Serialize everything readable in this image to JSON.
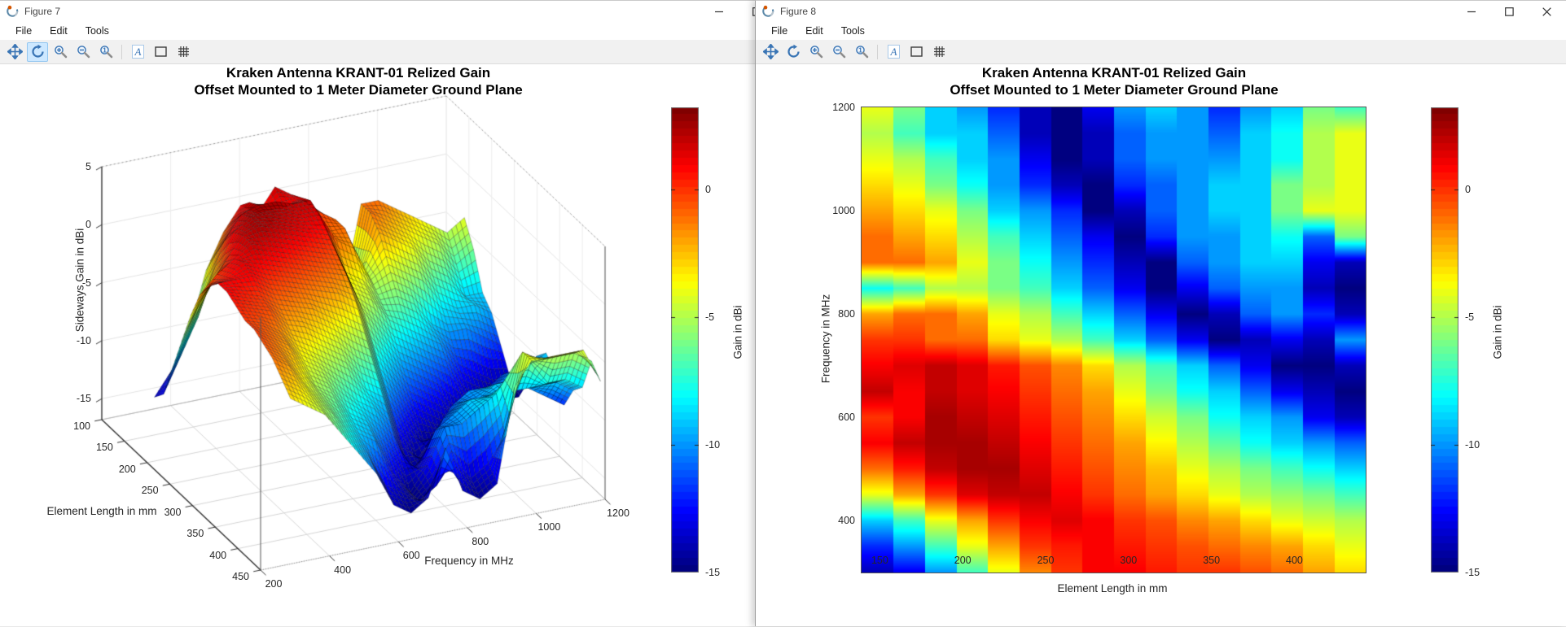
{
  "chrome": {
    "toolbar_active_bg": "#cde8ff",
    "toolbar_active_border": "#92c6f0",
    "icon_blue": "#3a75b5",
    "logo_orange": "#d45500",
    "logo_blue": "#5b88a8"
  },
  "windows": [
    {
      "title": "Figure 7",
      "menus": [
        "File",
        "Edit",
        "Tools"
      ],
      "toolbar": [
        "pan",
        "rotate-3d",
        "zoom-in",
        "zoom-out",
        "zoom-reset",
        "separator",
        "text",
        "rectangle",
        "grid"
      ],
      "active_tool": "rotate-3d",
      "window_buttons": [
        "minimize",
        "maximize"
      ],
      "plot": {
        "title1": "Kraken Antenna KRANT-01 Relized Gain",
        "title2": "Offset Mounted to 1 Meter Diameter Ground Plane",
        "xlabel": "Frequency in MHz",
        "x_ticks": [
          200,
          400,
          600,
          800,
          1000,
          1200
        ],
        "ylabel": "Element Length in mm",
        "y_ticks": [
          100,
          150,
          200,
          250,
          300,
          350,
          400,
          450
        ],
        "zlabel": "Sideways Gain in dBi",
        "z_ticks": [
          5,
          0,
          -5,
          -10,
          -15
        ],
        "colorbar_label": "Gain in dBi",
        "colorbar_ticks": [
          0,
          -5,
          -10,
          -15
        ]
      }
    },
    {
      "title": "Figure 8",
      "menus": [
        "File",
        "Edit",
        "Tools"
      ],
      "toolbar": [
        "pan",
        "rotate-3d",
        "zoom-in",
        "zoom-out",
        "zoom-reset",
        "separator",
        "text",
        "rectangle",
        "grid"
      ],
      "active_tool": null,
      "window_buttons": [
        "minimize",
        "maximize",
        "close"
      ],
      "plot": {
        "title1": "Kraken Antenna KRANT-01 Relized Gain",
        "title2": "Offset Mounted to 1 Meter Diameter Ground Plane",
        "xlabel": "Element Length in mm",
        "x_ticks": [
          150,
          200,
          250,
          300,
          350,
          400
        ],
        "ylabel": "Frequency in MHz",
        "y_ticks": [
          1200,
          1000,
          800,
          600,
          400
        ],
        "colorbar_label": "Gain in dBi",
        "colorbar_ticks": [
          0,
          -5,
          -10,
          -15
        ]
      }
    }
  ],
  "chart_data": [
    {
      "type": "surface3d",
      "title": "Kraken Antenna KRANT-01 Relized Gain — Offset Mounted to 1 Meter Diameter Ground Plane",
      "xlabel": "Frequency in MHz",
      "ylabel": "Element Length in mm",
      "zlabel": "Sideways Gain in dBi",
      "x_range_mhz": [
        200,
        1200
      ],
      "y_range_mm": [
        100,
        450
      ],
      "z_ticks": [
        5,
        0,
        -5,
        -10,
        -15
      ],
      "colormap": "jet",
      "color_range": [
        -15,
        3.2
      ],
      "lengths_mm": [
        140,
        160,
        180,
        200,
        220,
        240,
        260,
        280,
        300,
        320,
        340,
        360,
        380,
        400,
        420,
        440
      ],
      "freqs_mhz": [
        1200,
        1150,
        1100,
        1050,
        1000,
        950,
        900,
        850,
        800,
        750,
        700,
        650,
        600,
        550,
        500,
        450,
        400,
        350,
        300
      ],
      "gain_dbi": [
        [
          -4,
          -6,
          -9,
          -10,
          -12,
          -14,
          -15,
          -13,
          -10,
          -9,
          -10,
          -12,
          -10,
          -9,
          -6,
          -7
        ],
        [
          -5,
          -7,
          -9,
          -9,
          -11,
          -14,
          -15,
          -14,
          -11,
          -10,
          -10,
          -11,
          -9,
          -8,
          -5,
          -4
        ],
        [
          -4,
          -5,
          -7,
          -9,
          -10,
          -13,
          -15,
          -14,
          -11,
          -10,
          -10,
          -10,
          -9,
          -8,
          -5,
          -4
        ],
        [
          -3,
          -4,
          -6,
          -8,
          -10,
          -12,
          -14,
          -15,
          -12,
          -11,
          -10,
          -9,
          -9,
          -6,
          -5,
          -4
        ],
        [
          -2,
          -3,
          -4,
          -6,
          -9,
          -10,
          -12,
          -15,
          -14,
          -11,
          -10,
          -9,
          -9,
          -6,
          -4,
          -4
        ],
        [
          -1,
          -2,
          -3,
          -5,
          -7,
          -9,
          -11,
          -13,
          -15,
          -12,
          -10,
          -10,
          -9,
          -8,
          -11,
          -6
        ],
        [
          -1,
          -1,
          -2,
          -4,
          -6,
          -8,
          -10,
          -12,
          -14,
          -15,
          -11,
          -10,
          -9,
          -9,
          -13,
          -14
        ],
        [
          -8,
          -7,
          -5,
          -5,
          -6,
          -7,
          -9,
          -11,
          -13,
          -15,
          -13,
          -11,
          -10,
          -10,
          -14,
          -15
        ],
        [
          -2,
          -1,
          -1,
          -2,
          -4,
          -5,
          -7,
          -9,
          -11,
          -13,
          -15,
          -14,
          -11,
          -10,
          -12,
          -14
        ],
        [
          0,
          0,
          -1,
          -1,
          -3,
          -4,
          -5,
          -7,
          -9,
          -11,
          -13,
          -15,
          -14,
          -13,
          -14,
          -10
        ],
        [
          1,
          1.5,
          2,
          1.5,
          0.5,
          -0.5,
          -1.5,
          -3,
          -5,
          -7,
          -9,
          -11,
          -13,
          -15,
          -15,
          -14
        ],
        [
          2,
          1,
          2,
          1.5,
          1,
          0,
          -1,
          -2,
          -4,
          -6,
          -8,
          -9,
          -11,
          -13,
          -14,
          -15
        ],
        [
          0,
          1,
          2.5,
          2,
          1.5,
          0.5,
          -0.5,
          -1.5,
          -3,
          -4.5,
          -6,
          -8,
          -9,
          -10,
          -13,
          -14
        ],
        [
          1,
          2,
          2.5,
          2.5,
          2,
          1,
          0,
          -1,
          -2,
          -3.5,
          -5,
          -6.5,
          -8,
          -9,
          -10,
          -11
        ],
        [
          -1,
          0.5,
          2,
          2.5,
          2.5,
          1.5,
          0.5,
          -0.5,
          -1.5,
          -2.5,
          -4,
          -5,
          -6,
          -7,
          -8,
          -9
        ],
        [
          -4,
          -2,
          0,
          1.5,
          2,
          2,
          1,
          0,
          -1,
          -2,
          -3,
          -4,
          -5,
          -5.5,
          -6,
          -7
        ],
        [
          -9,
          -7,
          -4,
          -2,
          0,
          1,
          1.5,
          1,
          0,
          -0.5,
          -1.5,
          -2,
          -3,
          -4,
          -4.5,
          -5
        ],
        [
          -12,
          -10,
          -7,
          -4,
          -2,
          0,
          0.5,
          1,
          0.5,
          0,
          -0.5,
          -1,
          -1.5,
          -2,
          -3,
          -4
        ],
        [
          -14,
          -13,
          -10,
          -7,
          -4,
          -1.5,
          0,
          1,
          1,
          0.5,
          0,
          0,
          -0.5,
          -1,
          -2,
          -3
        ]
      ]
    },
    {
      "type": "heatmap",
      "title": "Kraken Antenna KRANT-01 Relized Gain — Offset Mounted to 1 Meter Diameter Ground Plane",
      "xlabel": "Element Length in mm",
      "ylabel": "Frequency in MHz",
      "x_range_mm": [
        139,
        443
      ],
      "y_range_mhz": [
        300,
        1200
      ],
      "colormap": "jet",
      "color_range": [
        -15,
        3.2
      ],
      "grid_ref": 0,
      "colorbar_label": "Gain in dBi",
      "colorbar_ticks": [
        0,
        -5,
        -10,
        -15
      ]
    }
  ]
}
